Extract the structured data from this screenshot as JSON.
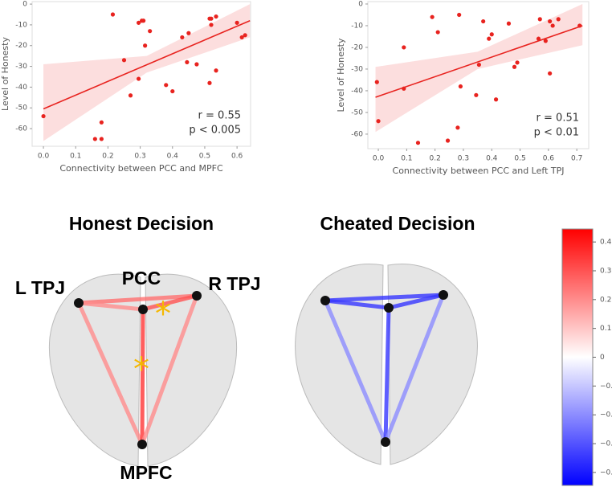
{
  "chart_data": [
    {
      "type": "scatter",
      "x_label": "Connectivity between PCC and MPFC",
      "y_label": "Level of Honesty",
      "color": "#e8231f",
      "x": [
        0.0,
        0.215,
        0.25,
        0.16,
        0.18,
        0.18,
        0.27,
        0.295,
        0.305,
        0.31,
        0.33,
        0.315,
        0.295,
        0.38,
        0.4,
        0.43,
        0.45,
        0.445,
        0.475,
        0.515,
        0.515,
        0.52,
        0.535,
        0.52,
        0.535,
        0.6,
        0.615,
        0.625
      ],
      "y": [
        -54,
        -5,
        -27,
        -65,
        -65,
        -57,
        -44,
        -9,
        -8,
        -8,
        -13,
        -20,
        -36,
        -39,
        -42,
        -16,
        -14,
        -28,
        -29,
        -38,
        -7,
        -7,
        -6,
        -10,
        -32,
        -9,
        -16,
        -15
      ],
      "fit": {
        "x": [
          0,
          0.64
        ],
        "y": [
          -50.5,
          -8
        ]
      },
      "ci": {
        "x": [
          0,
          0.32,
          0.64
        ],
        "lower": [
          -66,
          -33,
          -16
        ],
        "upper": [
          -29,
          -25,
          0
        ]
      },
      "xlim": [
        -0.035,
        0.642
      ],
      "ylim": [
        -68.5,
        1.2
      ],
      "xticks": [
        {
          "value": 0,
          "label": "0.0"
        },
        0.1,
        0.2,
        0.3,
        0.4,
        0.5,
        0.6
      ],
      "yticks": [
        0,
        -10,
        -20,
        -30,
        -40,
        -50,
        -60
      ],
      "annotations": [
        "r = 0.55",
        "p < 0.005"
      ]
    },
    {
      "type": "scatter",
      "x_label": "Connectivity between PCC and Left TPJ",
      "y_label": "Level of Honesty",
      "color": "#e8231f",
      "x": [
        -0.005,
        0,
        0.09,
        0.09,
        0.14,
        0.19,
        0.21,
        0.245,
        0.28,
        0.285,
        0.29,
        0.355,
        0.345,
        0.37,
        0.39,
        0.4,
        0.415,
        0.46,
        0.48,
        0.49,
        0.565,
        0.57,
        0.59,
        0.605,
        0.605,
        0.615,
        0.635,
        0.71
      ],
      "y": [
        -36,
        -54,
        -20,
        -39,
        -64,
        -6,
        -13,
        -63,
        -57,
        -5,
        -38,
        -28,
        -42,
        -8,
        -16,
        -14,
        -44,
        -9,
        -29,
        -27,
        -16,
        -7,
        -17,
        -8,
        -32,
        -10,
        -7,
        -10
      ],
      "fit": {
        "x": [
          -0.01,
          0.72
        ],
        "y": [
          -43,
          -10
        ]
      },
      "ci": {
        "x": [
          -0.01,
          0.35,
          0.72
        ],
        "lower": [
          -59,
          -30,
          -19
        ],
        "upper": [
          -29,
          -22,
          0
        ]
      },
      "xlim": [
        -0.037,
        0.742
      ],
      "ylim": [
        -66.7,
        1.1
      ],
      "xticks": [
        {
          "value": 0,
          "label": "0.0"
        },
        0.1,
        0.2,
        0.3,
        0.4,
        0.5,
        0.6,
        0.7
      ],
      "yticks": [
        0,
        -10,
        -20,
        -30,
        -40,
        -50,
        -60
      ],
      "annotations": [
        "r = 0.51",
        "p < 0.01"
      ]
    },
    {
      "type": "network",
      "title": "Honest Decision",
      "node_labels": [
        "L TPJ",
        "PCC",
        "R TPJ",
        "MPFC"
      ],
      "values": [
        0.25,
        0.2,
        0.3,
        0.2,
        0.35,
        0.2
      ]
    },
    {
      "type": "network",
      "title": "Cheated Decision",
      "values": [
        -0.35,
        -0.35,
        -0.35,
        -0.2,
        -0.35,
        -0.2
      ]
    },
    {
      "type": "colorbar",
      "ylim": [
        -0.445,
        0.445
      ],
      "yticks": [
        0.4,
        0.3,
        0.2,
        0.1,
        0,
        {
          "value": -0.1,
          "label": "−0.1"
        },
        {
          "value": -0.2,
          "label": "−0.2"
        },
        {
          "value": -0.3,
          "label": "−0.3"
        },
        {
          "value": -0.4,
          "label": "−0.4"
        }
      ]
    }
  ]
}
